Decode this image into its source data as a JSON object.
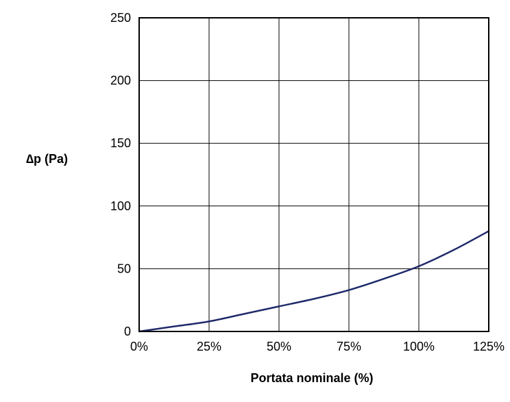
{
  "chart_data": {
    "type": "line",
    "title": "",
    "xlabel": "Portata nominale (%)",
    "ylabel": "∆p (Pa)",
    "xlim": [
      0,
      125
    ],
    "ylim": [
      0,
      250
    ],
    "grid": true,
    "x_ticks": [
      {
        "value": 0,
        "label": "0%"
      },
      {
        "value": 25,
        "label": "25%"
      },
      {
        "value": 50,
        "label": "50%"
      },
      {
        "value": 75,
        "label": "75%"
      },
      {
        "value": 100,
        "label": "100%"
      },
      {
        "value": 125,
        "label": "125%"
      }
    ],
    "y_ticks": [
      {
        "value": 0,
        "label": "0"
      },
      {
        "value": 50,
        "label": "50"
      },
      {
        "value": 100,
        "label": "100"
      },
      {
        "value": 150,
        "label": "150"
      },
      {
        "value": 200,
        "label": "200"
      },
      {
        "value": 250,
        "label": "250"
      }
    ],
    "series": [
      {
        "color": "#1f2a6b",
        "x": [
          0,
          12.5,
          25,
          37.5,
          50,
          62.5,
          75,
          87.5,
          100,
          112.5,
          125
        ],
        "y": [
          0,
          4,
          8,
          14,
          20,
          26,
          33,
          42,
          52,
          65,
          80
        ]
      }
    ]
  }
}
